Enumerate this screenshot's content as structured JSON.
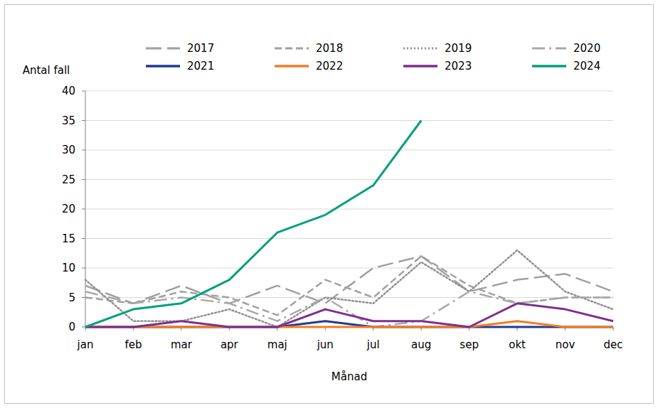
{
  "chart_data": {
    "type": "line",
    "y_label": "Antal fall",
    "x_label": "Månad",
    "categories": [
      "jan",
      "feb",
      "mar",
      "apr",
      "maj",
      "jun",
      "jul",
      "aug",
      "sep",
      "okt",
      "nov",
      "dec"
    ],
    "ylim": [
      0,
      40
    ],
    "yticks": [
      0,
      5,
      10,
      15,
      20,
      25,
      30,
      35,
      40
    ],
    "grid": true,
    "legend": "top",
    "series": [
      {
        "name": "2017",
        "color": "#a0a0a0",
        "line_style": "longdash",
        "values": [
          7,
          4,
          7,
          4,
          7,
          4,
          10,
          12,
          6,
          8,
          9,
          6
        ]
      },
      {
        "name": "2018",
        "color": "#a0a0a0",
        "line_style": "dashed",
        "values": [
          5,
          4,
          6,
          5,
          2,
          8,
          5,
          12,
          7,
          4,
          5,
          5
        ]
      },
      {
        "name": "2019",
        "color": "#909090",
        "line_style": "dotted",
        "values": [
          8,
          1,
          1,
          3,
          0,
          5,
          4,
          11,
          6,
          13,
          6,
          3
        ]
      },
      {
        "name": "2020",
        "color": "#a8a8a8",
        "line_style": "dashdot",
        "values": [
          6,
          4,
          5,
          4,
          1,
          5,
          0,
          1,
          6,
          4,
          5,
          5
        ]
      },
      {
        "name": "2021",
        "color": "#1f3a93",
        "line_style": "solid",
        "values": [
          0,
          0,
          0,
          0,
          0,
          1,
          0,
          0,
          0,
          0,
          0,
          0
        ]
      },
      {
        "name": "2022",
        "color": "#f07f22",
        "line_style": "solid",
        "values": [
          0,
          0,
          0,
          0,
          0,
          0,
          0,
          0,
          0,
          1,
          0,
          0
        ]
      },
      {
        "name": "2023",
        "color": "#7e2f8e",
        "line_style": "solid",
        "values": [
          0,
          0,
          1,
          0,
          0,
          3,
          1,
          1,
          0,
          4,
          3,
          1
        ]
      },
      {
        "name": "2024",
        "color": "#00a07a",
        "line_style": "solid",
        "values": [
          0,
          3,
          4,
          8,
          16,
          19,
          24,
          35,
          null,
          null,
          null,
          null
        ]
      }
    ]
  }
}
